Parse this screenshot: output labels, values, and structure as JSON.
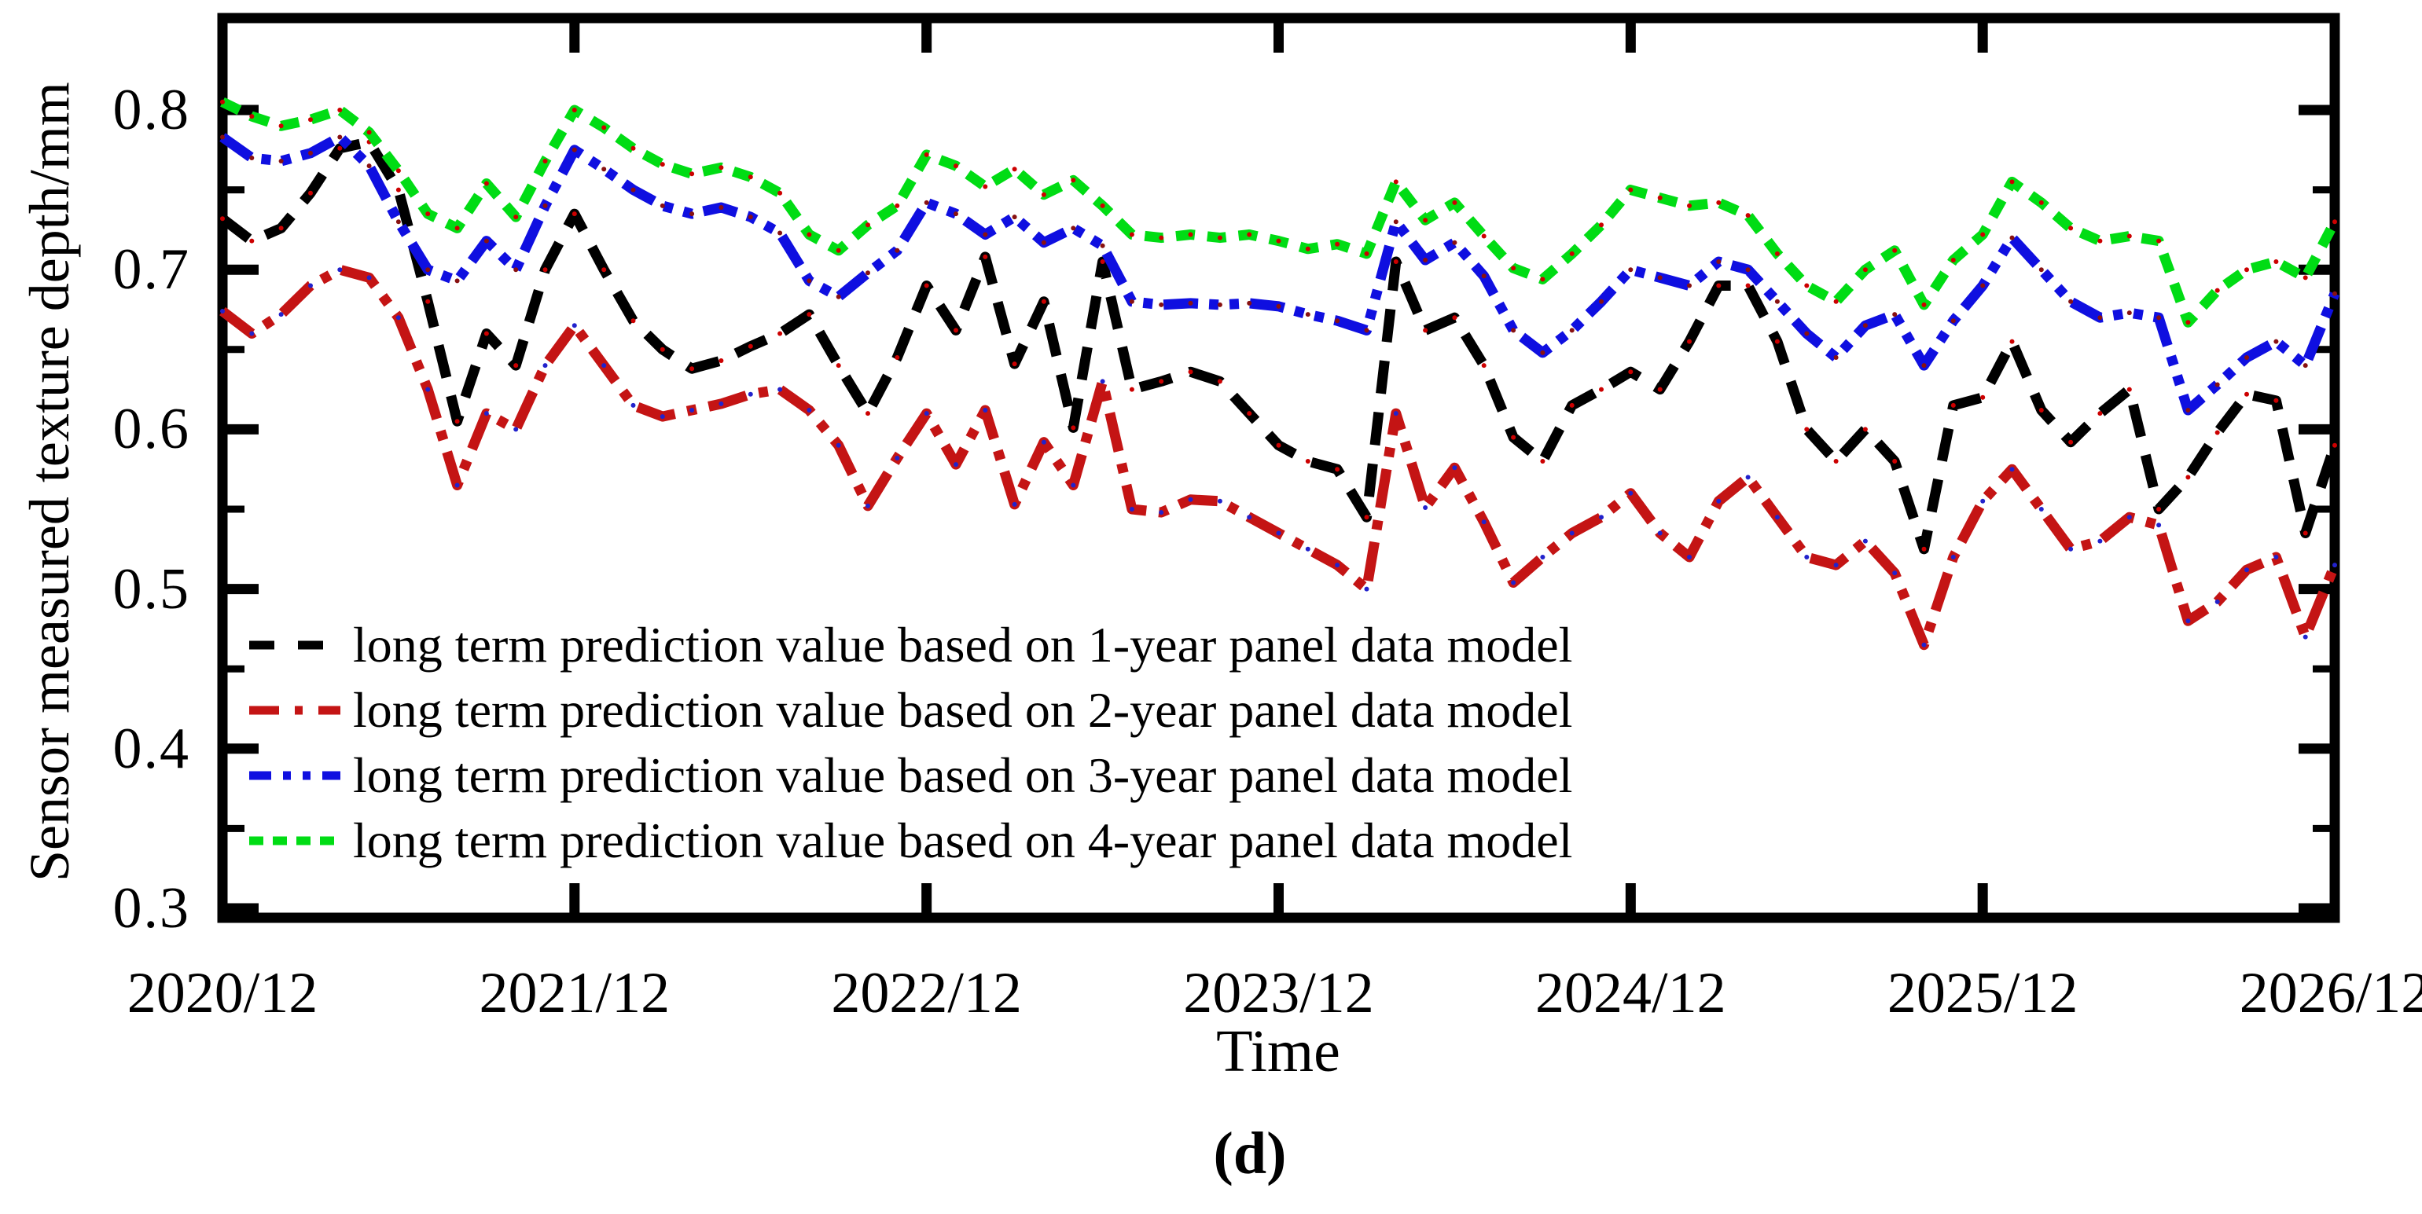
{
  "figure": {
    "caption": "(d)"
  },
  "chart_data": {
    "type": "line",
    "title": "",
    "xlabel": "Time",
    "ylabel": "Sensor measured texture depth/mm",
    "x_tick_labels": [
      "2020/12",
      "2021/12",
      "2022/12",
      "2023/12",
      "2024/12",
      "2025/12",
      "2026/12"
    ],
    "x_unit": "monthly points from 2020/12 to 2026/12",
    "y_tick_labels": [
      "0.8",
      "0.7",
      "0.6",
      "0.5",
      "0.4",
      "0.3"
    ],
    "y_ticks_major": [
      0.8,
      0.7,
      0.6,
      0.5,
      0.4,
      0.3
    ],
    "y_ticks_minor": [
      0.75,
      0.65,
      0.55,
      0.45,
      0.35
    ],
    "ylim": [
      0.294,
      0.858
    ],
    "grid": false,
    "legend_position": "lower left inside plot",
    "axis_color": "#000000",
    "background_color": "#ffffff",
    "series": [
      {
        "name": "long term prediction value based on 1-year panel data model",
        "color": "#000000",
        "marker_color": "#cc0000",
        "dash": "dash",
        "values": [
          0.732,
          0.718,
          0.726,
          0.748,
          0.776,
          0.78,
          0.75,
          0.68,
          0.605,
          0.66,
          0.64,
          0.7,
          0.735,
          0.7,
          0.668,
          0.65,
          0.638,
          0.643,
          0.652,
          0.66,
          0.672,
          0.64,
          0.61,
          0.645,
          0.69,
          0.662,
          0.708,
          0.641,
          0.68,
          0.601,
          0.705,
          0.625,
          0.63,
          0.636,
          0.63,
          0.61,
          0.59,
          0.58,
          0.575,
          0.545,
          0.705,
          0.662,
          0.67,
          0.64,
          0.595,
          0.58,
          0.615,
          0.625,
          0.636,
          0.625,
          0.655,
          0.69,
          0.69,
          0.655,
          0.6,
          0.58,
          0.6,
          0.58,
          0.525,
          0.615,
          0.62,
          0.655,
          0.612,
          0.592,
          0.61,
          0.625,
          0.55,
          0.57,
          0.598,
          0.622,
          0.618,
          0.535,
          0.59
        ]
      },
      {
        "name": "long term prediction value based on 2-year panel data model",
        "color": "#c41414",
        "marker_color": "#2222cc",
        "dash": "dash-dot",
        "values": [
          0.674,
          0.66,
          0.672,
          0.69,
          0.7,
          0.695,
          0.67,
          0.625,
          0.565,
          0.61,
          0.6,
          0.64,
          0.665,
          0.64,
          0.615,
          0.608,
          0.612,
          0.616,
          0.622,
          0.625,
          0.612,
          0.59,
          0.552,
          0.582,
          0.61,
          0.578,
          0.612,
          0.553,
          0.592,
          0.565,
          0.63,
          0.55,
          0.548,
          0.556,
          0.555,
          0.545,
          0.535,
          0.525,
          0.515,
          0.5,
          0.61,
          0.551,
          0.576,
          0.542,
          0.504,
          0.52,
          0.535,
          0.545,
          0.56,
          0.535,
          0.52,
          0.555,
          0.57,
          0.545,
          0.52,
          0.515,
          0.53,
          0.51,
          0.465,
          0.52,
          0.555,
          0.575,
          0.55,
          0.525,
          0.53,
          0.545,
          0.54,
          0.48,
          0.492,
          0.512,
          0.52,
          0.47,
          0.515
        ]
      },
      {
        "name": "long term prediction value based on 3-year panel data model",
        "color": "#0f0fe0",
        "marker_color": "#881111",
        "dash": "dash-dot-dot",
        "values": [
          0.783,
          0.77,
          0.768,
          0.773,
          0.783,
          0.765,
          0.73,
          0.7,
          0.693,
          0.718,
          0.7,
          0.74,
          0.775,
          0.763,
          0.75,
          0.74,
          0.735,
          0.739,
          0.733,
          0.723,
          0.693,
          0.683,
          0.698,
          0.712,
          0.742,
          0.735,
          0.722,
          0.733,
          0.717,
          0.726,
          0.715,
          0.68,
          0.678,
          0.679,
          0.678,
          0.679,
          0.677,
          0.672,
          0.668,
          0.662,
          0.73,
          0.706,
          0.717,
          0.696,
          0.662,
          0.648,
          0.662,
          0.68,
          0.7,
          0.695,
          0.69,
          0.705,
          0.7,
          0.68,
          0.66,
          0.645,
          0.665,
          0.672,
          0.64,
          0.668,
          0.69,
          0.72,
          0.7,
          0.68,
          0.67,
          0.673,
          0.67,
          0.612,
          0.628,
          0.645,
          0.655,
          0.64,
          0.685
        ]
      },
      {
        "name": "long term prediction value based on 4-year panel data model",
        "color": "#00dc14",
        "marker_color": "#cc0000",
        "dash": "short-dash",
        "values": [
          0.805,
          0.796,
          0.79,
          0.794,
          0.8,
          0.786,
          0.762,
          0.735,
          0.726,
          0.754,
          0.733,
          0.768,
          0.8,
          0.789,
          0.776,
          0.766,
          0.76,
          0.764,
          0.758,
          0.748,
          0.722,
          0.712,
          0.728,
          0.74,
          0.772,
          0.765,
          0.752,
          0.763,
          0.747,
          0.756,
          0.74,
          0.722,
          0.72,
          0.722,
          0.72,
          0.722,
          0.718,
          0.713,
          0.716,
          0.71,
          0.755,
          0.731,
          0.742,
          0.721,
          0.701,
          0.694,
          0.71,
          0.728,
          0.75,
          0.745,
          0.74,
          0.742,
          0.734,
          0.71,
          0.69,
          0.68,
          0.7,
          0.712,
          0.678,
          0.706,
          0.722,
          0.755,
          0.742,
          0.726,
          0.718,
          0.721,
          0.718,
          0.667,
          0.687,
          0.7,
          0.705,
          0.695,
          0.73
        ]
      }
    ]
  }
}
